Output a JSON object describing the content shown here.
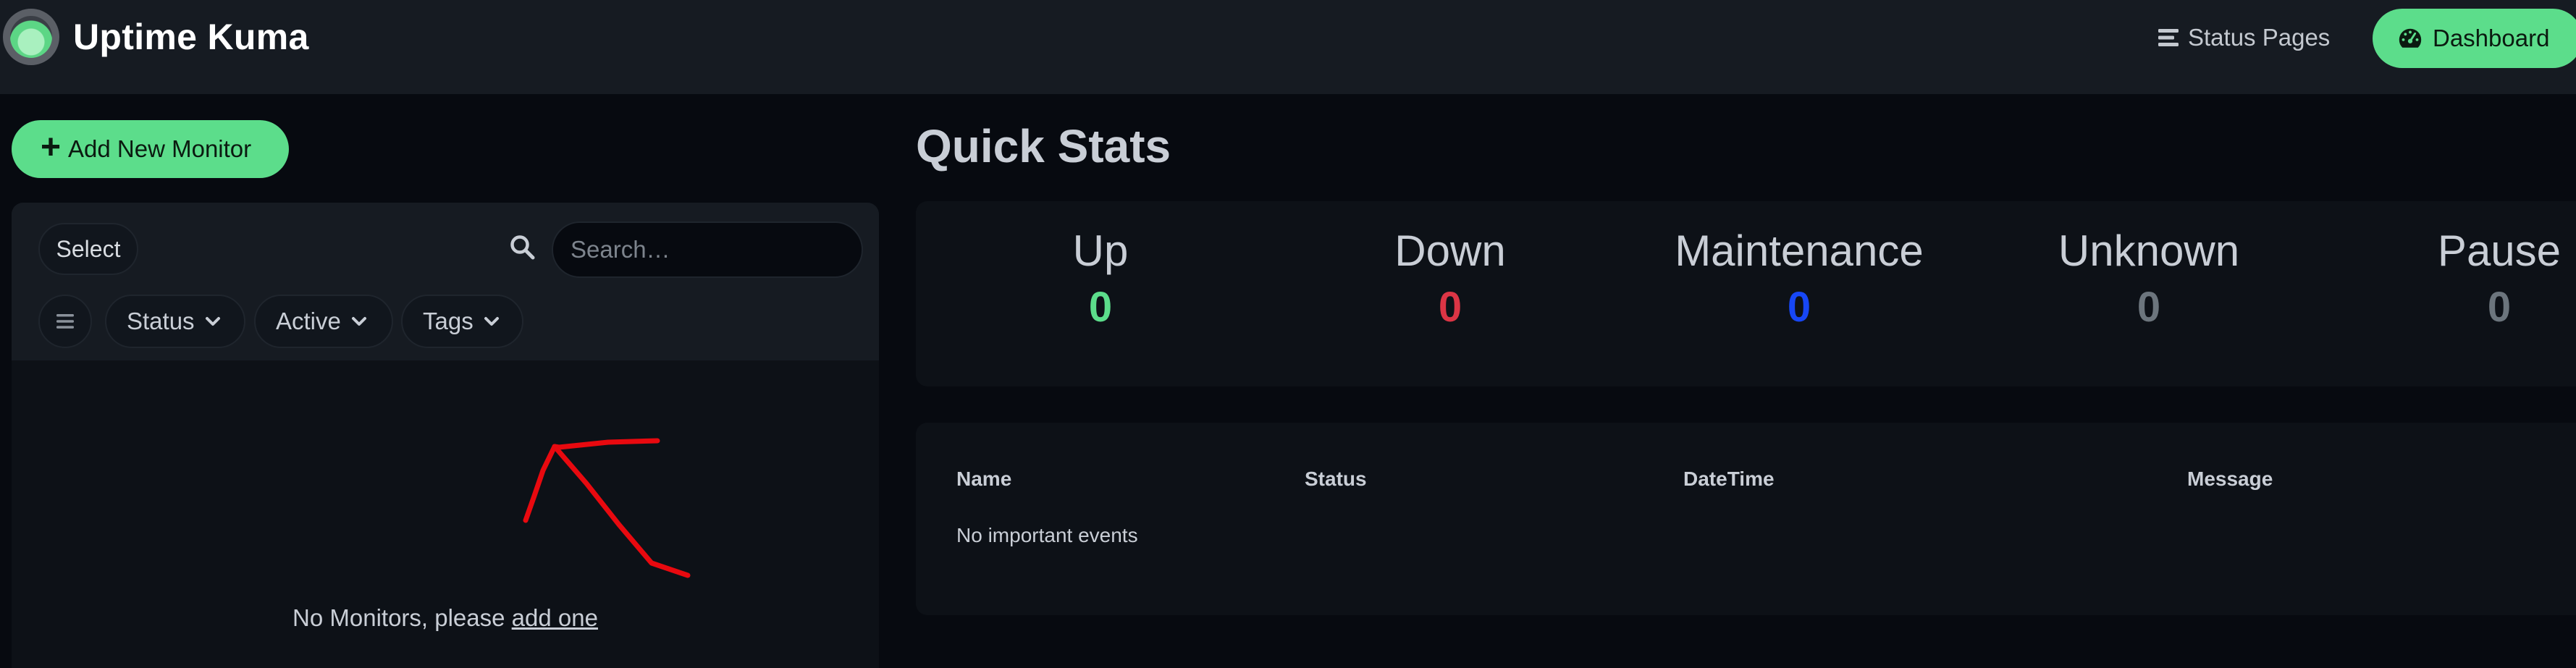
{
  "header": {
    "app_title": "Uptime Kuma",
    "logo_icon": "uptime-kuma-logo",
    "nav": {
      "status_pages": {
        "label": "Status Pages",
        "icon": "list-icon"
      },
      "dashboard": {
        "label": "Dashboard",
        "icon": "speedometer-icon",
        "active": true
      }
    }
  },
  "left": {
    "add_monitor": {
      "label": "Add New Monitor",
      "icon": "plus-icon"
    },
    "toolbar": {
      "select_label": "Select",
      "search": {
        "placeholder": "Search…",
        "value": ""
      },
      "filters": [
        {
          "label": "Status"
        },
        {
          "label": "Active"
        },
        {
          "label": "Tags"
        }
      ]
    },
    "empty": {
      "text": "No Monitors, please",
      "link": "add one"
    }
  },
  "right": {
    "quick_stats_title": "Quick Stats",
    "stats": [
      {
        "label": "Up",
        "value": "0",
        "color": "#5cdd8b"
      },
      {
        "label": "Down",
        "value": "0",
        "color": "#dc3545"
      },
      {
        "label": "Maintenance",
        "value": "0",
        "color": "#1747f5"
      },
      {
        "label": "Unknown",
        "value": "0",
        "color": "#6c757d"
      },
      {
        "label": "Pause",
        "value": "0",
        "color": "#6c757d"
      }
    ],
    "events": {
      "columns": [
        "Name",
        "Status",
        "DateTime",
        "Message"
      ],
      "empty_text": "No important events"
    }
  },
  "colors": {
    "accent": "#5cdd8b",
    "background": "#070a10",
    "panel": "#0d1117",
    "header": "#161b22",
    "annotation": "#e8090f"
  }
}
